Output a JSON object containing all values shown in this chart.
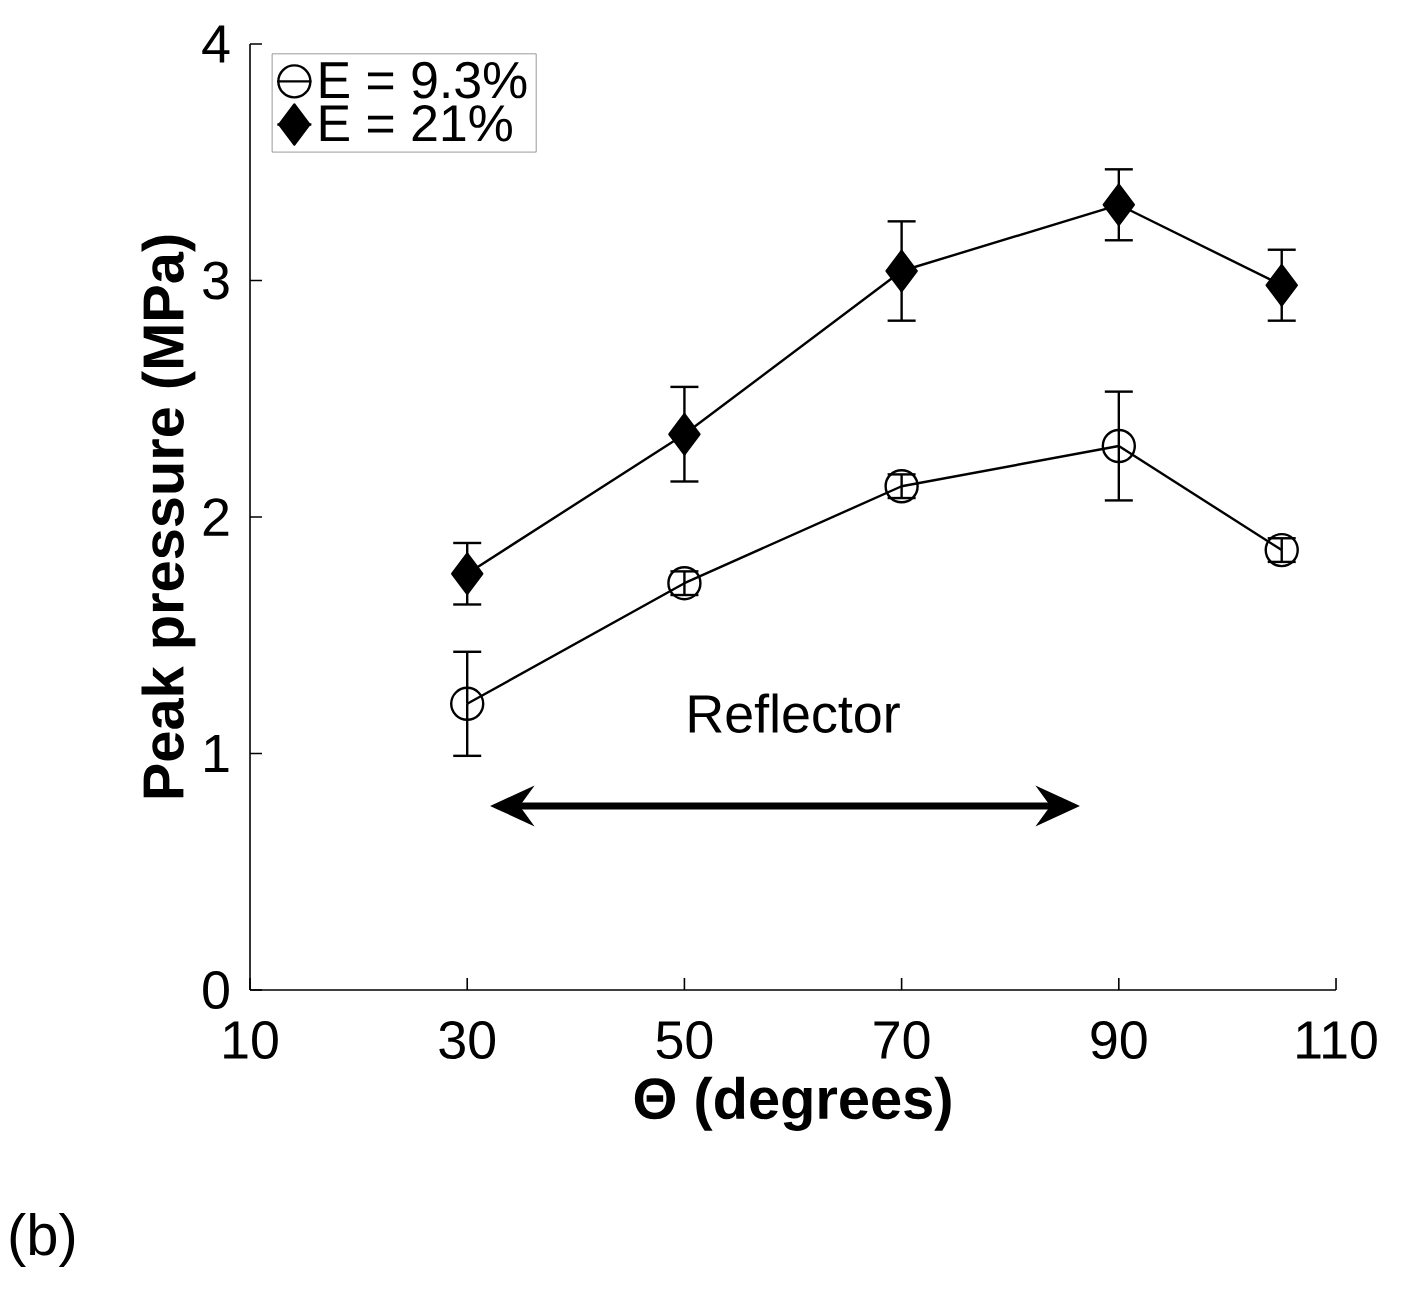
{
  "chart_data": {
    "type": "line",
    "xlabel": "Θ (degrees)",
    "ylabel": "Peak pressure (MPa)",
    "x": [
      30,
      50,
      70,
      90,
      105
    ],
    "series": [
      {
        "name": "E = 9.3%",
        "color": "#000000",
        "marker": "circle",
        "values": [
          1.21,
          1.72,
          2.13,
          2.3,
          1.86
        ],
        "errors": [
          0.22,
          0.05,
          0.05,
          0.23,
          0.05
        ]
      },
      {
        "name": "E = 21%",
        "color": "#000000",
        "marker": "diamond",
        "values": [
          1.76,
          2.35,
          3.04,
          3.32,
          2.98
        ],
        "errors": [
          0.13,
          0.2,
          0.21,
          0.15,
          0.15
        ]
      }
    ],
    "xlim": [
      10,
      110
    ],
    "xticks": [
      10,
      30,
      50,
      70,
      90,
      110
    ],
    "ylim": [
      0,
      4
    ],
    "yticks": [
      0,
      1,
      2,
      3,
      4
    ],
    "grid": false,
    "legend": "top left",
    "annotations": [
      "Reflector",
      "(b)"
    ]
  }
}
